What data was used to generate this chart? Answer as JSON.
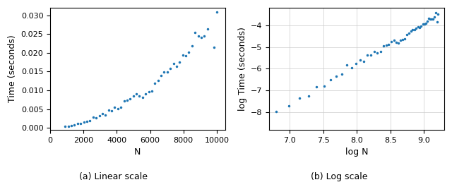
{
  "title_left": "(a) Linear scale",
  "title_right": "(b) Log scale",
  "xlabel_left": "N",
  "ylabel_left": "Time (seconds)",
  "xlabel_right": "log N",
  "ylabel_right": "log Time (seconds)",
  "dot_color": "#1f77b4",
  "dot_size": 3,
  "N_start": 900,
  "N_end": 10000,
  "N_points": 50,
  "ylim_left": [
    -0.0005,
    0.032
  ],
  "xlim_left": [
    0,
    10500
  ],
  "xticks_left": [
    0,
    2000,
    4000,
    6000,
    8000,
    10000
  ],
  "yticks_left": [
    0.0,
    0.005,
    0.01,
    0.015,
    0.02,
    0.025,
    0.03
  ],
  "xlim_right": [
    6.7,
    9.3
  ],
  "ylim_right": [
    -8.8,
    -3.2
  ],
  "xticks_right": [
    7.0,
    7.5,
    8.0,
    8.5,
    9.0
  ],
  "yticks_right": [
    -8,
    -7,
    -6,
    -5,
    -4
  ],
  "grid_right": true,
  "figsize": [
    6.4,
    2.65
  ],
  "dpi": 100,
  "alpha_power": 1.8,
  "C_coeff": 3e-09
}
